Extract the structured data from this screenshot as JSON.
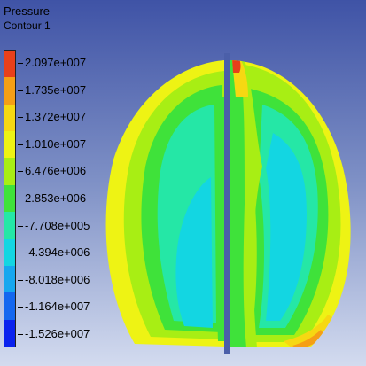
{
  "legend": {
    "title": "Pressure",
    "subtitle": "Contour 1",
    "labels": [
      "2.097e+007",
      "1.735e+007",
      "1.372e+007",
      "1.010e+007",
      "6.476e+006",
      "2.853e+006",
      "-7.708e+005",
      "-4.394e+006",
      "-8.018e+006",
      "-1.164e+007",
      "-1.526e+007"
    ],
    "colors": [
      "#e8401a",
      "#f59f16",
      "#f6d812",
      "#eef314",
      "#a8ee14",
      "#3fe23a",
      "#25e7a6",
      "#13d6e2",
      "#16a7ef",
      "#1467ef",
      "#0a22ee"
    ]
  }
}
